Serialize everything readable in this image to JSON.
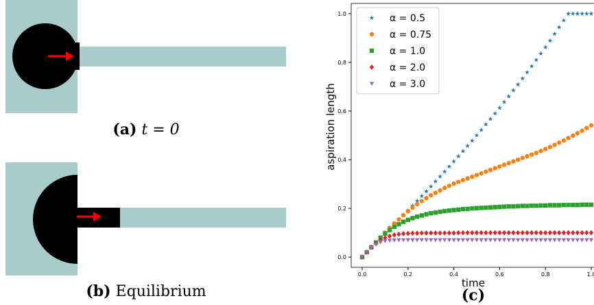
{
  "panels": [
    {
      "label": "(a)",
      "caption": "t = 0"
    },
    {
      "label": "(b)",
      "caption": "Equilibrium"
    }
  ],
  "chart_data": {
    "type": "scatter",
    "caption": "(c)",
    "xlabel": "time",
    "ylabel": "aspiration length",
    "xlim": [
      -0.048,
      1.012
    ],
    "ylim": [
      -0.042,
      1.042
    ],
    "xticks": [
      {
        "value": 0,
        "label": "0.0"
      },
      0.2,
      0.4,
      0.6,
      0.8,
      {
        "value": 1,
        "label": "1.0"
      }
    ],
    "yticks": [
      {
        "value": 0,
        "label": "0.0"
      },
      0.2,
      0.4,
      0.6,
      0.8,
      {
        "value": 1,
        "label": "1.0"
      }
    ],
    "grid": false,
    "legend": "upper left",
    "x": [
      0,
      0.02,
      0.04,
      0.06,
      0.08,
      0.1,
      0.12,
      0.14,
      0.16,
      0.18,
      0.2,
      0.22,
      0.24,
      0.26,
      0.28,
      0.3,
      0.32,
      0.34,
      0.36,
      0.38,
      0.4,
      0.42,
      0.44,
      0.46,
      0.48,
      0.5,
      0.52,
      0.54,
      0.56,
      0.58,
      0.6,
      0.62,
      0.64,
      0.66,
      0.68,
      0.7,
      0.72,
      0.74,
      0.76,
      0.78,
      0.8,
      0.82,
      0.84,
      0.86,
      0.88,
      0.9,
      0.92,
      0.94,
      0.96,
      0.98,
      1.0
    ],
    "series": [
      {
        "name": "α = 0.5",
        "color": "#1f77b4",
        "marker": "*",
        "values": [
          0,
          0.019,
          0.038,
          0.057,
          0.076,
          0.095,
          0.114,
          0.134,
          0.153,
          0.172,
          0.192,
          0.211,
          0.231,
          0.251,
          0.27,
          0.29,
          0.311,
          0.331,
          0.351,
          0.372,
          0.393,
          0.414,
          0.435,
          0.457,
          0.478,
          0.5,
          0.522,
          0.545,
          0.567,
          0.59,
          0.613,
          0.637,
          0.66,
          0.685,
          0.709,
          0.734,
          0.759,
          0.784,
          0.81,
          0.836,
          0.862,
          0.889,
          0.917,
          0.944,
          0.972,
          1.0,
          1.0,
          1.0,
          1.0,
          1.0,
          1.0
        ]
      },
      {
        "name": "α = 0.75",
        "color": "#ff7f0e",
        "marker": "o",
        "values": [
          0,
          0.02,
          0.04,
          0.06,
          0.08,
          0.1,
          0.12,
          0.138,
          0.155,
          0.172,
          0.188,
          0.203,
          0.217,
          0.23,
          0.242,
          0.254,
          0.264,
          0.274,
          0.284,
          0.293,
          0.302,
          0.309,
          0.316,
          0.323,
          0.33,
          0.337,
          0.344,
          0.351,
          0.358,
          0.365,
          0.372,
          0.379,
          0.386,
          0.393,
          0.4,
          0.407,
          0.414,
          0.421,
          0.428,
          0.436,
          0.444,
          0.452,
          0.461,
          0.47,
          0.479,
          0.489,
          0.499,
          0.509,
          0.519,
          0.53,
          0.541
        ]
      },
      {
        "name": "α = 1.0",
        "color": "#2ca02c",
        "marker": "s",
        "values": [
          0,
          0.02,
          0.04,
          0.06,
          0.08,
          0.097,
          0.111,
          0.124,
          0.135,
          0.145,
          0.153,
          0.16,
          0.166,
          0.171,
          0.176,
          0.18,
          0.183,
          0.186,
          0.189,
          0.191,
          0.193,
          0.195,
          0.197,
          0.198,
          0.2,
          0.201,
          0.202,
          0.203,
          0.204,
          0.205,
          0.206,
          0.207,
          0.208,
          0.208,
          0.209,
          0.21,
          0.21,
          0.211,
          0.211,
          0.212,
          0.212,
          0.213,
          0.213,
          0.213,
          0.214,
          0.214,
          0.214,
          0.214,
          0.215,
          0.215,
          0.215
        ]
      },
      {
        "name": "α = 2.0",
        "color": "#d62728",
        "marker": "D",
        "values": [
          0,
          0.02,
          0.04,
          0.056,
          0.069,
          0.079,
          0.086,
          0.091,
          0.094,
          0.096,
          0.097,
          0.098,
          0.098,
          0.099,
          0.099,
          0.099,
          0.099,
          0.099,
          0.099,
          0.099,
          0.099,
          0.1,
          0.1,
          0.1,
          0.1,
          0.1,
          0.1,
          0.1,
          0.1,
          0.1,
          0.1,
          0.1,
          0.1,
          0.1,
          0.1,
          0.1,
          0.1,
          0.1,
          0.1,
          0.1,
          0.1,
          0.1,
          0.1,
          0.1,
          0.1,
          0.1,
          0.1,
          0.1,
          0.1,
          0.1,
          0.1
        ]
      },
      {
        "name": "α = 3.0",
        "color": "#9467bd",
        "marker": "v",
        "values": [
          0,
          0.02,
          0.038,
          0.052,
          0.061,
          0.066,
          0.068,
          0.069,
          0.07,
          0.07,
          0.07,
          0.07,
          0.07,
          0.07,
          0.07,
          0.07,
          0.07,
          0.07,
          0.07,
          0.07,
          0.07,
          0.07,
          0.07,
          0.07,
          0.07,
          0.07,
          0.07,
          0.07,
          0.07,
          0.07,
          0.07,
          0.07,
          0.07,
          0.07,
          0.07,
          0.07,
          0.07,
          0.07,
          0.07,
          0.07,
          0.07,
          0.07,
          0.07,
          0.07,
          0.07,
          0.07,
          0.07,
          0.07,
          0.07,
          0.07,
          0.07
        ]
      }
    ]
  }
}
